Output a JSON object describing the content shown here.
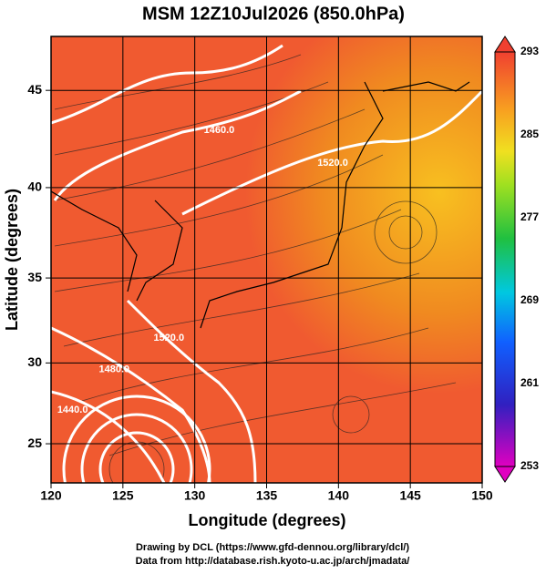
{
  "chart_data": {
    "type": "map",
    "title": "MSM 12Z10Jul2026 (850.0hPa)",
    "xlabel": "Longitude (degrees)",
    "ylabel": "Latitude  (degrees)",
    "xlim": [
      120,
      150
    ],
    "ylim": [
      22.5,
      47.6
    ],
    "xticks": [
      120,
      125,
      130,
      135,
      140,
      145,
      150
    ],
    "yticks": [
      25,
      30,
      35,
      40,
      45
    ],
    "projection": "mercator",
    "colorbar": {
      "lim": [
        253,
        293
      ],
      "ticks": [
        253,
        261,
        269,
        277,
        285,
        293
      ]
    },
    "annotations": [
      {
        "text": "1460.0",
        "x": 131.7,
        "y": 43.0
      },
      {
        "text": "1520.0",
        "x": 139.6,
        "y": 41.3
      },
      {
        "text": "1520.0",
        "x": 128.2,
        "y": 31.5
      },
      {
        "text": "1480.0",
        "x": 124.4,
        "y": 29.6
      },
      {
        "text": "1440.0",
        "x": 121.5,
        "y": 27.1
      }
    ],
    "credits": [
      "Drawing by DCL (https://www.gfd-dennou.org/library/dcl/)",
      "Data from http://database.rish.kyoto-u.ac.jp/arch/jmadata/"
    ]
  }
}
